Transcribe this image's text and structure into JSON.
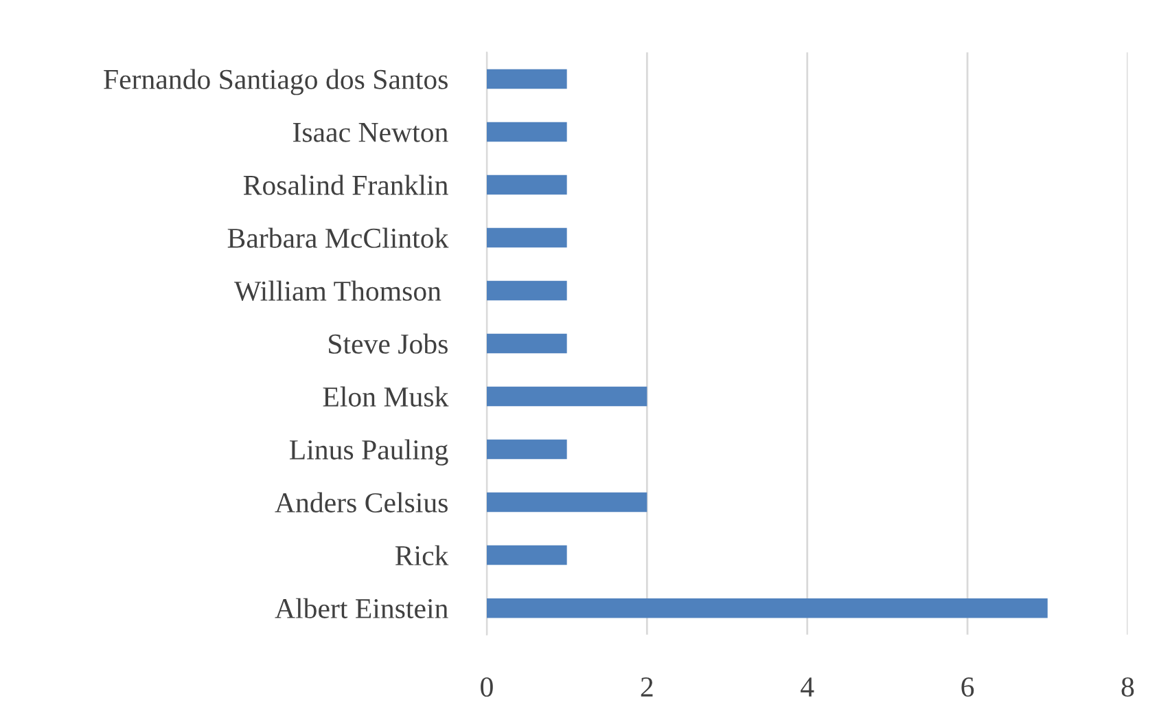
{
  "chart_data": {
    "type": "bar",
    "orientation": "horizontal",
    "categories": [
      "Fernando Santiago dos Santos",
      "Isaac Newton",
      "Rosalind Franklin",
      "Barbara McClintok",
      "William Thomson ",
      "Steve Jobs",
      "Elon Musk",
      "Linus Pauling",
      "Anders Celsius",
      "Rick",
      "Albert Einstein"
    ],
    "values": [
      1,
      1,
      1,
      1,
      1,
      1,
      2,
      1,
      2,
      1,
      7
    ],
    "color": "#4f81bd",
    "xlim": [
      0,
      8
    ],
    "xticks": [
      0,
      2,
      4,
      6,
      8
    ],
    "grid": "x"
  }
}
